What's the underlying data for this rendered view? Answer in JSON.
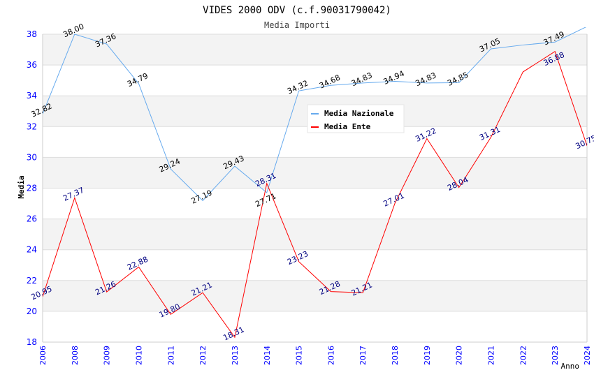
{
  "chart_data": {
    "type": "line",
    "title": "VIDES 2000 ODV (c.f.90031790042)",
    "subtitle": "Media Importi",
    "xlabel": "Anno",
    "ylabel": "Media",
    "ylim": [
      18,
      38
    ],
    "yticks": [
      "18",
      "20",
      "22",
      "24",
      "26",
      "28",
      "30",
      "32",
      "34",
      "36",
      "38"
    ],
    "categories": [
      "2006",
      "2008",
      "2009",
      "2010",
      "2011",
      "2012",
      "2013",
      "2014",
      "2015",
      "2016",
      "2017",
      "2018",
      "2019",
      "2020",
      "2021",
      "2022",
      "2023",
      "2024"
    ],
    "grid": true,
    "legend_position": "top-right",
    "series": [
      {
        "name": "Media Nazionale",
        "color": "#66aaee",
        "label_color": "#000000",
        "values": [
          32.82,
          38.0,
          37.36,
          34.79,
          29.24,
          27.19,
          29.43,
          27.71,
          34.32,
          34.68,
          34.83,
          34.94,
          34.83,
          34.85,
          37.05,
          37.3,
          37.49,
          38.5
        ],
        "labels": [
          "32.82",
          "38.00",
          "37.36",
          "34.79",
          "29.24",
          "27.19",
          "29.43",
          "27.71",
          "34.32",
          "34.68",
          "34.83",
          "34.94",
          "34.83",
          "34.85",
          "37.05",
          "",
          "37.49",
          ""
        ]
      },
      {
        "name": "Media Ente",
        "color": "#ff0000",
        "label_color": "#000080",
        "values": [
          20.95,
          27.37,
          21.26,
          22.88,
          19.8,
          21.21,
          18.31,
          28.31,
          23.23,
          21.28,
          21.21,
          27.01,
          31.22,
          28.04,
          31.31,
          35.55,
          36.88,
          30.75
        ],
        "labels": [
          "20.95",
          "27.37",
          "21.26",
          "22.88",
          "19.80",
          "21.21",
          "18.31",
          "28.31",
          "23.23",
          "21.28",
          "21.21",
          "27.01",
          "31.22",
          "28.04",
          "31.31",
          "",
          "36.88",
          "30.75"
        ]
      }
    ]
  }
}
